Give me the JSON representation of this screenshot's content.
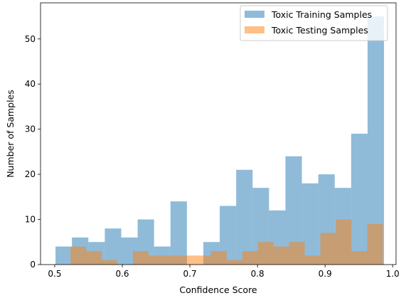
{
  "chart_data": {
    "type": "bar",
    "subtype": "histogram",
    "xlabel": "Confidence Score",
    "ylabel": "Number of Samples",
    "xlim": [
      0.479,
      1.005
    ],
    "ylim": [
      0,
      58
    ],
    "xticks": [
      0.5,
      0.6,
      0.7,
      0.8,
      0.9,
      1.0
    ],
    "xtick_labels": [
      "0.5",
      "0.6",
      "0.7",
      "0.8",
      "0.9",
      "1.0"
    ],
    "yticks": [
      0,
      10,
      20,
      30,
      40,
      50
    ],
    "ytick_labels": [
      "0",
      "10",
      "20",
      "30",
      "40",
      "50"
    ],
    "grid": false,
    "legend_position": "upper-right",
    "series": [
      {
        "name": "Toxic Training Samples",
        "color": "#1f77b4",
        "alpha": 0.5,
        "bin_edges": [
          0.5012,
          0.5255,
          0.5498,
          0.5741,
          0.5984,
          0.6227,
          0.647,
          0.6713,
          0.6956,
          0.7199,
          0.7442,
          0.7685,
          0.7928,
          0.8171,
          0.8414,
          0.8657,
          0.89,
          0.9143,
          0.9386,
          0.9629,
          0.9872
        ],
        "values": [
          4,
          6,
          5,
          8,
          6,
          10,
          4,
          14,
          0,
          5,
          13,
          21,
          17,
          12,
          24,
          18,
          20,
          17,
          29,
          55
        ]
      },
      {
        "name": "Toxic Testing Samples",
        "color": "#ff7f0e",
        "alpha": 0.5,
        "bin_edges": [
          0.5234,
          0.5465,
          0.5696,
          0.5927,
          0.6158,
          0.6389,
          0.662,
          0.6851,
          0.7082,
          0.7313,
          0.7544,
          0.7775,
          0.8006,
          0.8237,
          0.8468,
          0.8699,
          0.893,
          0.9161,
          0.9392,
          0.9623,
          0.9854
        ],
        "values": [
          4,
          3,
          1,
          0,
          3,
          2,
          2,
          2,
          2,
          3,
          1,
          3,
          5,
          4,
          5,
          2,
          7,
          10,
          3,
          9
        ]
      }
    ]
  }
}
